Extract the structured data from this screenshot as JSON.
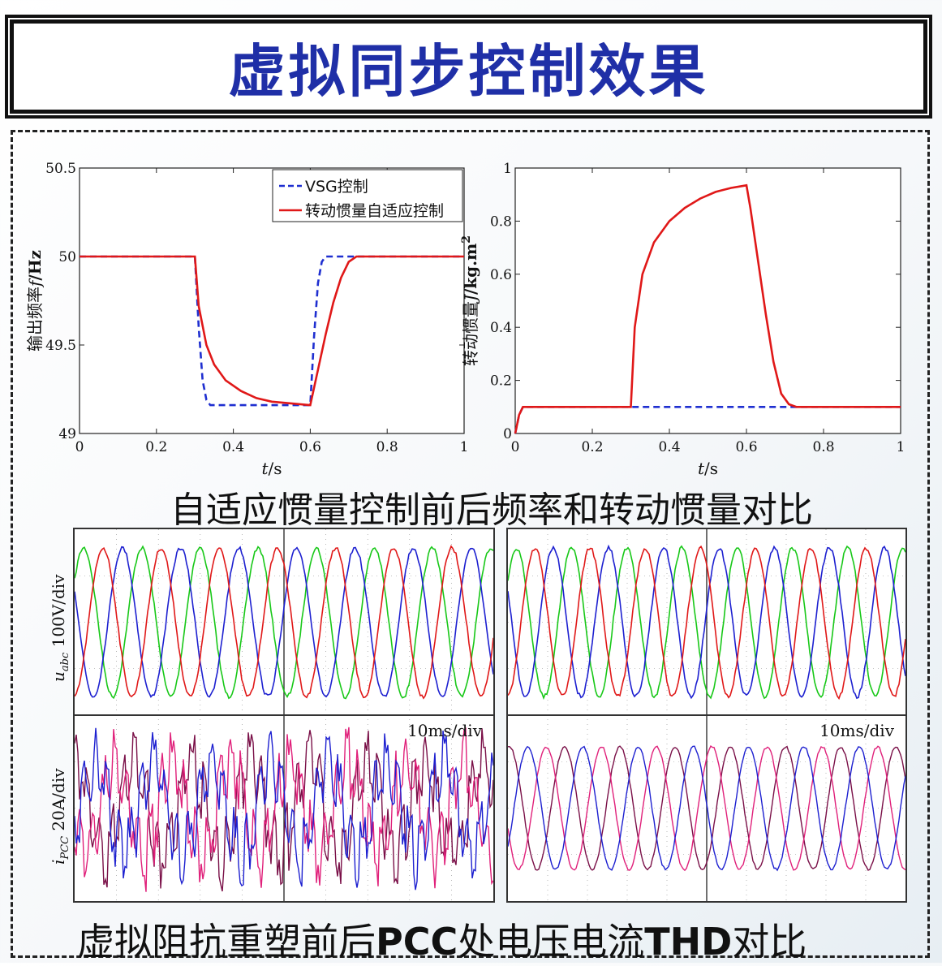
{
  "title": "虚拟同步控制效果",
  "chart_data": [
    {
      "type": "line",
      "xlabel_var": "t",
      "xlabel_unit": "/s",
      "ylabel_prefix": "输出频率",
      "ylabel_var": "f",
      "ylabel_unit": "/Hz",
      "xlim": [
        0,
        1
      ],
      "ylim": [
        49,
        50.5
      ],
      "xticks": [
        0,
        0.2,
        0.4,
        0.6,
        0.8,
        1
      ],
      "yticks": [
        49,
        49.5,
        50,
        50.5
      ],
      "xtick_labels": [
        "0",
        "0.2",
        "0.4",
        "0.6",
        "0.8",
        "1"
      ],
      "ytick_labels": [
        "49",
        "49.5",
        "50",
        "50.5"
      ],
      "legend_position": "top-right",
      "series": [
        {
          "name": "VSG控制",
          "color": "#1f2fd0",
          "style": "dashed",
          "x": [
            0,
            0.3,
            0.31,
            0.32,
            0.33,
            0.34,
            0.6,
            0.6,
            0.61,
            0.62,
            0.63,
            0.64,
            0.65,
            1
          ],
          "y": [
            50,
            50,
            49.6,
            49.3,
            49.19,
            49.16,
            49.16,
            49.16,
            49.55,
            49.85,
            49.97,
            50,
            50,
            50
          ]
        },
        {
          "name": "转动惯量自适应控制",
          "color": "#e01818",
          "style": "solid",
          "x": [
            0,
            0.3,
            0.31,
            0.33,
            0.35,
            0.38,
            0.42,
            0.46,
            0.5,
            0.55,
            0.6,
            0.62,
            0.64,
            0.66,
            0.68,
            0.7,
            0.72,
            1
          ],
          "y": [
            50,
            50,
            49.72,
            49.5,
            49.39,
            49.3,
            49.24,
            49.2,
            49.18,
            49.17,
            49.16,
            49.36,
            49.56,
            49.74,
            49.88,
            49.97,
            50,
            50
          ]
        }
      ]
    },
    {
      "type": "line",
      "xlabel_var": "t",
      "xlabel_unit": "/s",
      "ylabel_prefix": "转动惯量",
      "ylabel_var": "J",
      "ylabel_unit": "/kg.m",
      "ylabel_sup": "2",
      "xlim": [
        0,
        1
      ],
      "ylim": [
        0,
        1
      ],
      "xticks": [
        0,
        0.2,
        0.4,
        0.6,
        0.8,
        1
      ],
      "yticks": [
        0,
        0.2,
        0.4,
        0.6,
        0.8,
        1
      ],
      "xtick_labels": [
        "0",
        "0.2",
        "0.4",
        "0.6",
        "0.8",
        "1"
      ],
      "ytick_labels": [
        "0",
        "0.2",
        "0.4",
        "0.6",
        "0.8",
        "1"
      ],
      "series": [
        {
          "color": "#1f2fd0",
          "style": "dashed",
          "x": [
            0,
            0.01,
            0.02,
            1
          ],
          "y": [
            0,
            0.07,
            0.1,
            0.1
          ]
        },
        {
          "color": "#e01818",
          "style": "solid",
          "x": [
            0,
            0.01,
            0.02,
            0.3,
            0.31,
            0.33,
            0.36,
            0.4,
            0.44,
            0.48,
            0.52,
            0.56,
            0.6,
            0.61,
            0.63,
            0.65,
            0.67,
            0.69,
            0.71,
            0.73,
            1
          ],
          "y": [
            0,
            0.07,
            0.1,
            0.1,
            0.4,
            0.6,
            0.72,
            0.8,
            0.85,
            0.885,
            0.91,
            0.925,
            0.935,
            0.85,
            0.65,
            0.45,
            0.27,
            0.15,
            0.11,
            0.1,
            0.1
          ]
        }
      ]
    }
  ],
  "caption1": "自适应惯量控制前后频率和转动惯量对比",
  "caption2_parts": [
    "虚拟阻抗重塑前后",
    "PCC",
    "处电压电流",
    "THD",
    "对比"
  ],
  "scope": {
    "voltage_label_var": "u",
    "voltage_label_sub": "abc",
    "voltage_label_unit": " 100V/div",
    "current_label_var": "i",
    "current_label_sub": "PCC",
    "current_label_unit": " 20A/div",
    "timebase": "10ms/div",
    "voltage_colors": [
      "#18c818",
      "#1d20d0",
      "#e01818"
    ],
    "current_colors_left": [
      "#7a1048",
      "#e0207a",
      "#1d20d0"
    ],
    "current_colors_right": [
      "#7a1048",
      "#e0207a",
      "#1d20d0"
    ]
  }
}
